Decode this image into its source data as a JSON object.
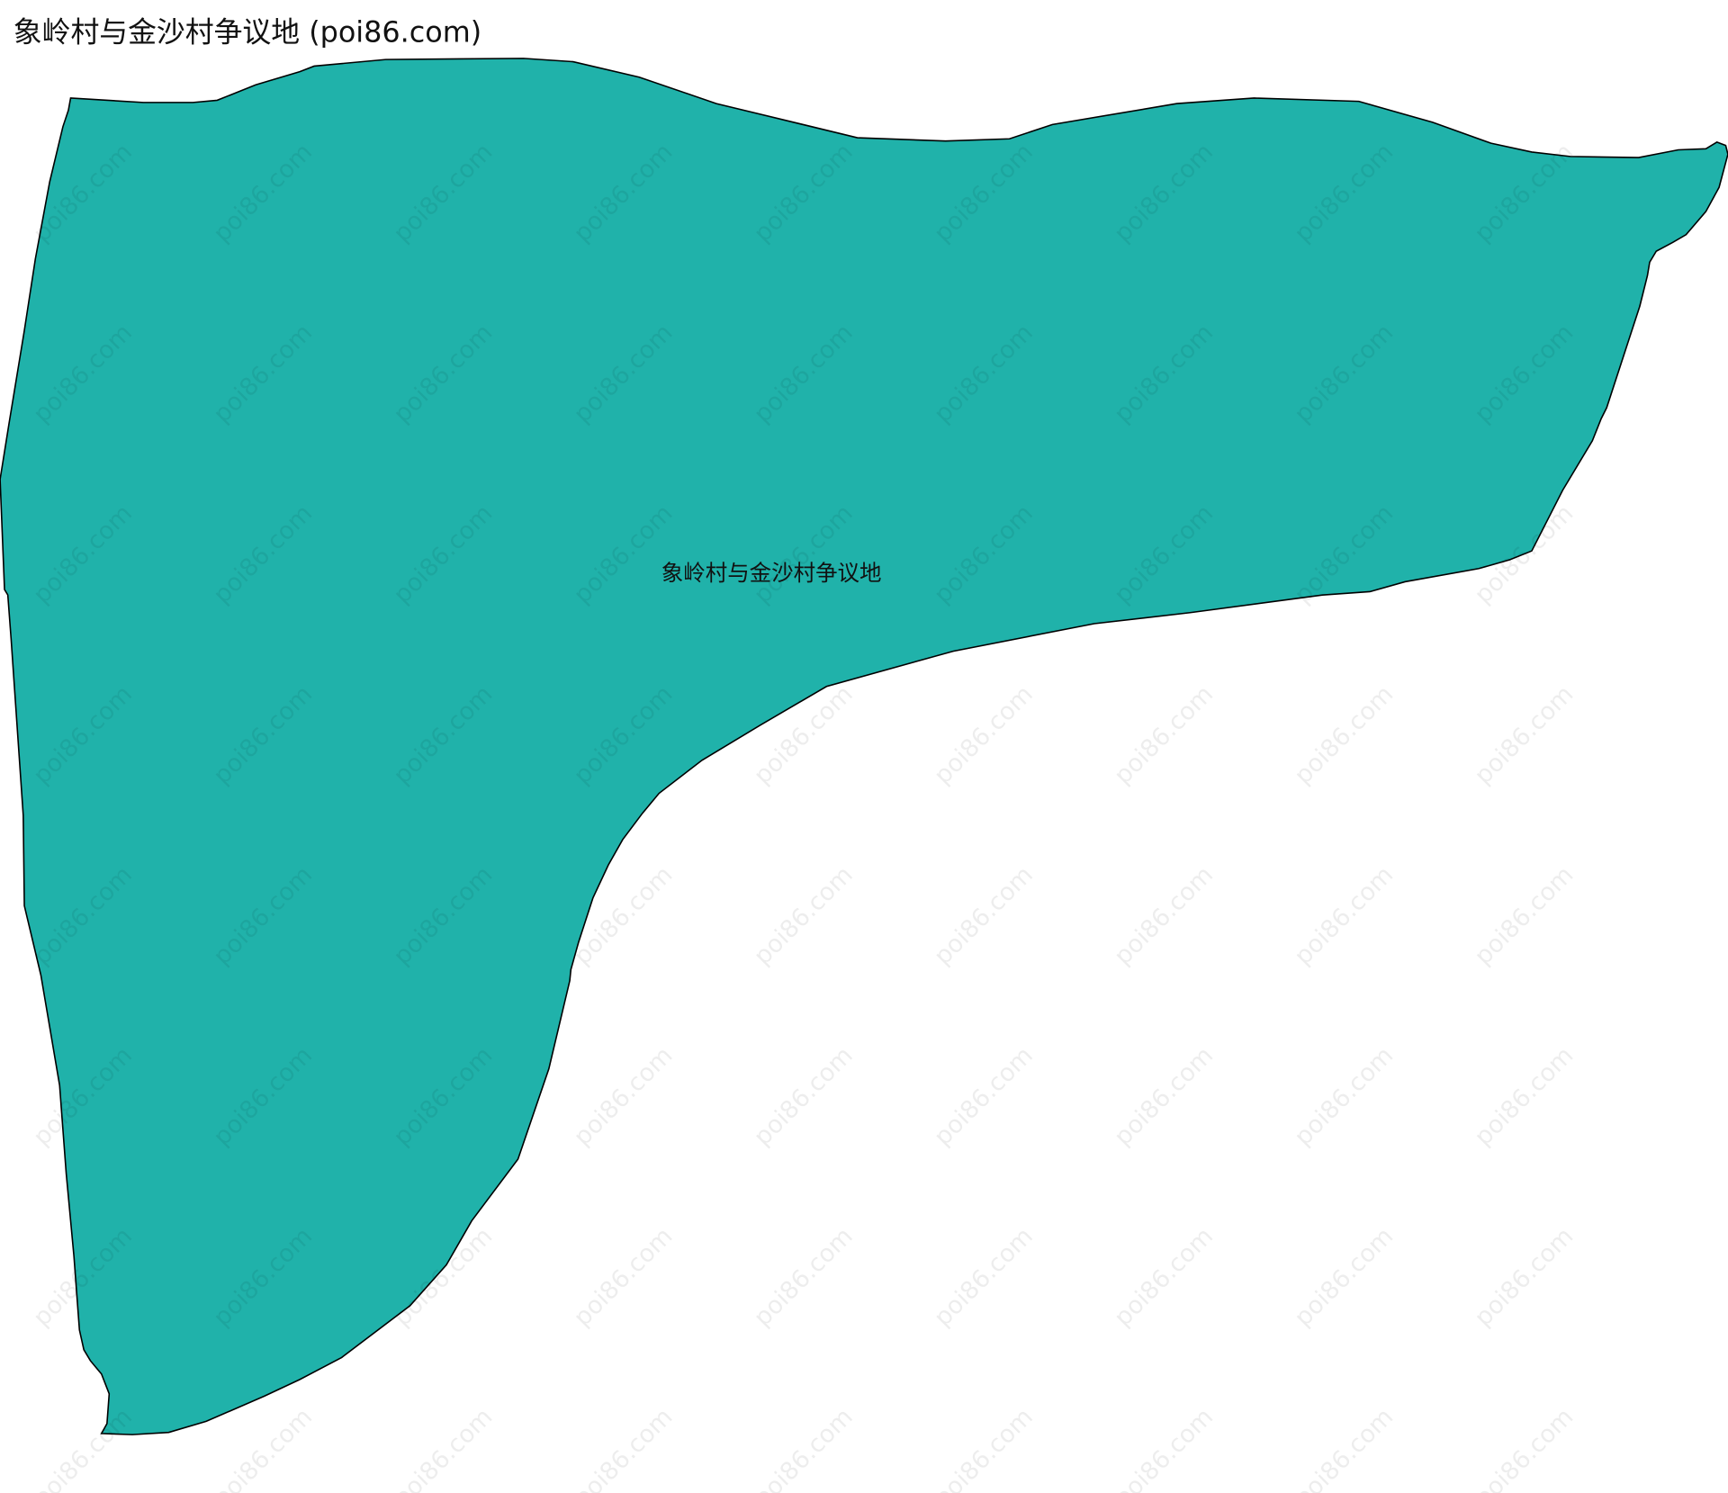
{
  "title": "象岭村与金沙村争议地 (poi86.com)",
  "region": {
    "name": "象岭村与金沙村争议地",
    "fill_color": "#20b2aa",
    "stroke_color": "#000000"
  },
  "watermark": "poi86.com"
}
